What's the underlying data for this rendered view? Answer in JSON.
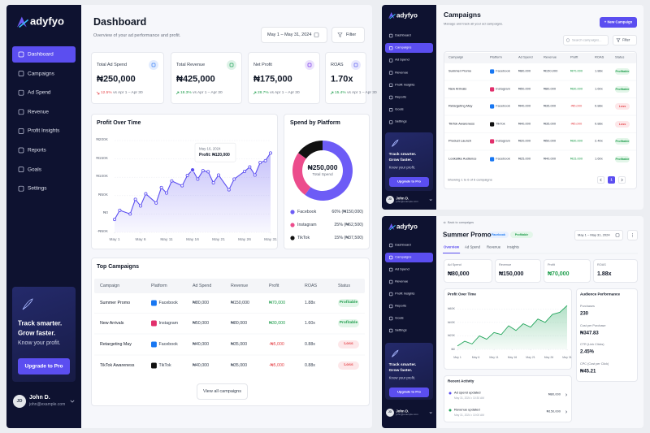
{
  "sidebar": {
    "brand": "adyfyo",
    "nav": [
      "Dashboard",
      "Campaigns",
      "Ad Spend",
      "Revenue",
      "Profit Insights",
      "Reports",
      "Goals",
      "Settings"
    ],
    "promo_lines": [
      "Track smarter.",
      "Grow faster."
    ],
    "promo_text": "Know your profit.",
    "upgrade": "Upgrade to Pro",
    "user_initials": "JD",
    "user_name": "John D.",
    "user_email": "john@example.com"
  },
  "platform_colors": {
    "Facebook": "#1877f2",
    "Instagram": "#e1306c",
    "TikTok": "#111111"
  },
  "status_colors": {
    "Profitable": {
      "fg": "#1f9d4c",
      "bg": "#e3f6e9"
    },
    "Loss": {
      "fg": "#e5484d",
      "bg": "#fde7e9"
    }
  },
  "dashboard": {
    "active_nav": 0,
    "title": "Dashboard",
    "subtitle": "Overview of your ad performance and profit.",
    "date_range": "May 1 – May 31, 2024",
    "filter": "Filter",
    "kpis": [
      {
        "label": "Total Ad Spend",
        "value": "₦250,000",
        "change": "12.5%",
        "compare": "vs Apr 1 – Apr 30",
        "trend": "down",
        "color": "#3b82f6"
      },
      {
        "label": "Total Revenue",
        "value": "₦425,000",
        "change": "18.3%",
        "compare": "vs Apr 1 – Apr 30",
        "trend": "up",
        "color": "#22a55b"
      },
      {
        "label": "Net Profit",
        "value": "₦175,000",
        "change": "28.7%",
        "compare": "vs Apr 1 – Apr 30",
        "trend": "up",
        "color": "#7c3aed"
      },
      {
        "label": "ROAS",
        "value": "1.70x",
        "change": "15.4%",
        "compare": "vs Apr 1 – Apr 30",
        "trend": "up",
        "color": "#6366f1"
      }
    ],
    "top_campaigns": {
      "title": "Top Campaigns",
      "columns": [
        "Campaign",
        "Platform",
        "Ad Spend",
        "Revenue",
        "Profit",
        "ROAS",
        "Status"
      ],
      "rows": [
        [
          "Summer Promo",
          "Facebook",
          "₦80,000",
          "₦150,000",
          "₦70,000",
          "1.88x",
          "Profitable"
        ],
        [
          "New Arrivals",
          "Instagram",
          "₦50,000",
          "₦80,000",
          "₦30,000",
          "1.60x",
          "Profitable"
        ],
        [
          "Retargeting May",
          "Facebook",
          "₦40,000",
          "₦35,000",
          "-₦5,000",
          "0.88x",
          "Loss"
        ],
        [
          "TikTok Awareness",
          "TikTok",
          "₦40,000",
          "₦35,000",
          "-₦5,000",
          "0.88x",
          "Loss"
        ]
      ],
      "button": "View all campaigns"
    }
  },
  "campaigns_page": {
    "active_nav": 1,
    "title": "Campaigns",
    "subtitle": "Manage and track all your ad campaigns.",
    "new_button": "+ New Campaign",
    "search": "Search campaigns...",
    "filter": "Filter",
    "columns": [
      "Campaign",
      "Platform",
      "Ad Spend",
      "Revenue",
      "Profit",
      "ROAS",
      "Status"
    ],
    "rows": [
      [
        "Summer Promo",
        "Facebook",
        "₦80,000",
        "₦150,000",
        "₦70,000",
        "1.88x",
        "Profitable"
      ],
      [
        "New Arrivals",
        "Instagram",
        "₦50,000",
        "₦80,000",
        "₦30,000",
        "1.60x",
        "Profitable"
      ],
      [
        "Retargeting May",
        "Facebook",
        "₦40,000",
        "₦35,000",
        "-₦5,000",
        "0.88x",
        "Loss"
      ],
      [
        "TikTok Awareness",
        "TikTok",
        "₦40,000",
        "₦35,000",
        "-₦5,000",
        "0.88x",
        "Loss"
      ],
      [
        "Product Launch",
        "Instagram",
        "₦20,000",
        "₦50,000",
        "₦30,000",
        "2.40x",
        "Profitable"
      ],
      [
        "Lookalike Audience",
        "Facebook",
        "₦25,000",
        "₦40,000",
        "₦15,000",
        "1.60x",
        "Profitable"
      ]
    ],
    "showing": "Showing 1 to 6 of 6 campaigns",
    "page": "1"
  },
  "campaign_detail": {
    "active_nav": 1,
    "back": "Back to campaigns",
    "title": "Summer Promo",
    "badges": [
      "Facebook",
      "Profitable"
    ],
    "date_range": "May 1 – May 31, 2024",
    "tabs": [
      "Overview",
      "Ad Spend",
      "Revenue",
      "Insights"
    ],
    "active_tab": 0,
    "kpis": [
      {
        "label": "Ad Spend",
        "value": "₦80,000",
        "color": "#111827"
      },
      {
        "label": "Revenue",
        "value": "₦150,000",
        "color": "#111827"
      },
      {
        "label": "Profit",
        "value": "₦70,000",
        "color": "#1f9d4c"
      },
      {
        "label": "ROAS",
        "value": "1.88x",
        "color": "#111827"
      }
    ],
    "audience": {
      "title": "Audience Performance",
      "items": [
        {
          "label": "Purchases",
          "value": "230"
        },
        {
          "label": "Cost per Purchase",
          "value": "₦347.83"
        },
        {
          "label": "CTR (Link Clicks)",
          "value": "2.45%"
        },
        {
          "label": "CPC (Cost per Click)",
          "value": "₦45.21"
        }
      ]
    },
    "activity": {
      "title": "Recent Activity",
      "items": [
        {
          "title": "Ad spend updated",
          "time": "May 31, 2024 • 10:30 AM",
          "amount": "₦80,000"
        },
        {
          "title": "Revenue updated",
          "time": "May 31, 2024 • 10:00 AM",
          "amount": "₦150,000"
        }
      ]
    }
  },
  "chart_data": [
    {
      "type": "line",
      "title": "Profit Over Time",
      "x": [
        1,
        2,
        4,
        5,
        6,
        7,
        9,
        10,
        11,
        12,
        14,
        15,
        16,
        17,
        18,
        19,
        20,
        21,
        23,
        24,
        26,
        27,
        28,
        29,
        30,
        31
      ],
      "values": [
        -15000,
        10000,
        0,
        40000,
        22000,
        55000,
        30000,
        72000,
        57000,
        90000,
        77000,
        105000,
        120000,
        95000,
        118000,
        115000,
        85000,
        106000,
        66000,
        95000,
        116000,
        128000,
        106000,
        140000,
        145000,
        166000
      ],
      "color": "#5b4ef0",
      "dots": true,
      "xlim": [
        1,
        31
      ],
      "xticks": [
        {
          "value": 1,
          "label": "May 1"
        },
        {
          "value": 6,
          "label": "May 6"
        },
        {
          "value": 11,
          "label": "May 11"
        },
        {
          "value": 16,
          "label": "May 16"
        },
        {
          "value": 21,
          "label": "May 21"
        },
        {
          "value": 26,
          "label": "May 26"
        },
        {
          "value": 31,
          "label": "May 31"
        }
      ],
      "ylim": [
        -50000,
        200000
      ],
      "yticks": [
        {
          "value": -50000,
          "label": "-₦50K"
        },
        {
          "value": 0,
          "label": "₦0"
        },
        {
          "value": 50000,
          "label": "₦50K"
        },
        {
          "value": 100000,
          "label": "₦100K"
        },
        {
          "value": 150000,
          "label": "₦150K"
        },
        {
          "value": 200000,
          "label": "₦200K"
        }
      ],
      "grid": true,
      "tooltip": {
        "x": 16,
        "title": "May 16, 2024",
        "text": "Profit: ₦120,000"
      }
    },
    {
      "type": "donut",
      "title": "Spend by Platform",
      "categories": [
        "Facebook",
        "Instagram",
        "TikTok"
      ],
      "values": [
        60,
        25,
        15
      ],
      "value_labels": [
        "60% (₦150,000)",
        "25% (₦62,500)",
        "15% (₦37,500)"
      ],
      "colors": [
        "#6d5cf6",
        "#ec4c8c",
        "#111111"
      ],
      "center_value": "₦250,000",
      "center_label": "Total Spend"
    },
    {
      "type": "line",
      "title": "Profit Over Time",
      "x": [
        1,
        3,
        5,
        7,
        9,
        11,
        13,
        15,
        17,
        19,
        21,
        23,
        25,
        27,
        29,
        31
      ],
      "values": [
        5000,
        12000,
        8000,
        20000,
        15000,
        25000,
        22000,
        35000,
        28000,
        38000,
        33000,
        45000,
        40000,
        52000,
        55000,
        65000
      ],
      "color": "#22a55b",
      "dots": false,
      "xlim": [
        1,
        31
      ],
      "xticks": [
        {
          "value": 1,
          "label": "May 1"
        },
        {
          "value": 6,
          "label": "May 6"
        },
        {
          "value": 11,
          "label": "May 11"
        },
        {
          "value": 16,
          "label": "May 16"
        },
        {
          "value": 21,
          "label": "May 21"
        },
        {
          "value": 26,
          "label": "May 26"
        },
        {
          "value": 31,
          "label": "May 31"
        }
      ],
      "ylim": [
        0,
        70000
      ],
      "yticks": [
        {
          "value": 0,
          "label": "₦0"
        },
        {
          "value": 20000,
          "label": "₦20K"
        },
        {
          "value": 40000,
          "label": "₦40K"
        },
        {
          "value": 60000,
          "label": "₦60K"
        }
      ],
      "grid": true
    }
  ]
}
